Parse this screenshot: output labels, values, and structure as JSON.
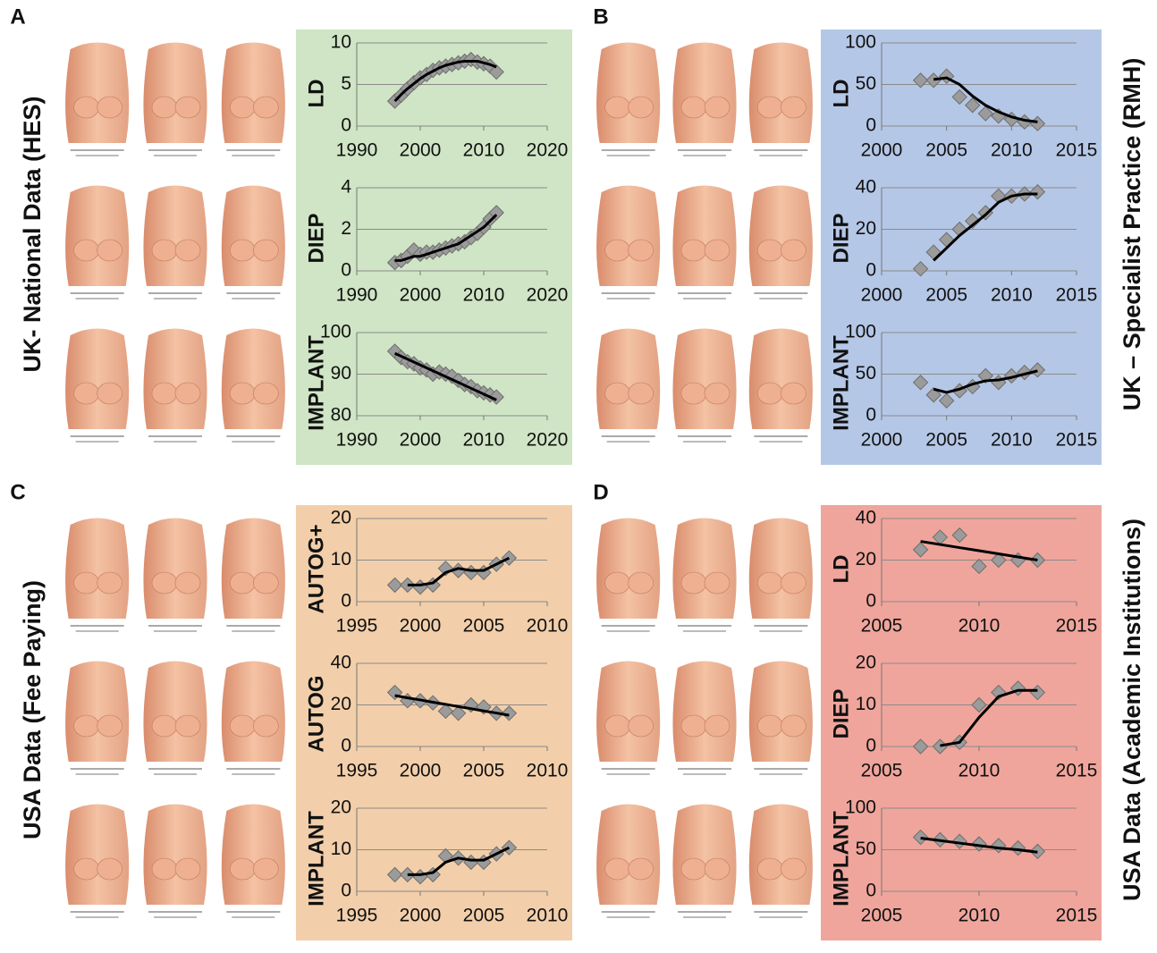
{
  "panels": [
    {
      "label": "A",
      "title": "UK- National Data (HES)",
      "color": "#cfe5c5",
      "chart_data": [
        {
          "type": "line",
          "ylabel": "LD",
          "x": [
            1996,
            1997,
            1998,
            1999,
            2000,
            2001,
            2002,
            2003,
            2004,
            2005,
            2006,
            2007,
            2008,
            2009,
            2010,
            2011,
            2012
          ],
          "values": [
            3,
            3.7,
            4.5,
            5.2,
            5.8,
            6.2,
            6.7,
            7,
            7.2,
            7.4,
            7.6,
            7.8,
            8,
            7.7,
            7.5,
            7.2,
            6.5
          ],
          "trend": [
            3,
            3.8,
            4.5,
            5.1,
            5.7,
            6.2,
            6.6,
            7,
            7.3,
            7.5,
            7.7,
            7.8,
            7.8,
            7.8,
            7.6,
            7.4,
            7.1
          ],
          "xlim": [
            1990,
            2020
          ],
          "xticks": [
            1990,
            2000,
            2010,
            2020
          ],
          "ylim": [
            0,
            10
          ],
          "yticks": [
            0,
            5,
            10
          ],
          "color": "#9b9b9b",
          "grid": true
        },
        {
          "type": "line",
          "ylabel": "DIEP",
          "x": [
            1996,
            1997,
            1998,
            1999,
            2000,
            2001,
            2002,
            2003,
            2004,
            2005,
            2006,
            2007,
            2008,
            2009,
            2010,
            2011,
            2012
          ],
          "values": [
            0.4,
            0.5,
            0.7,
            1,
            0.8,
            0.9,
            0.9,
            1,
            1.1,
            1.2,
            1.3,
            1.4,
            1.6,
            1.8,
            2.1,
            2.5,
            2.8
          ],
          "trend": [
            0.5,
            0.5,
            0.6,
            0.7,
            0.7,
            0.8,
            0.9,
            1,
            1.1,
            1.2,
            1.3,
            1.5,
            1.7,
            1.9,
            2.1,
            2.4,
            2.7
          ],
          "xlim": [
            1990,
            2020
          ],
          "xticks": [
            1990,
            2000,
            2010,
            2020
          ],
          "ylim": [
            0,
            4
          ],
          "yticks": [
            0,
            2,
            4
          ],
          "color": "#9b9b9b",
          "grid": true
        },
        {
          "type": "line",
          "ylabel": "IMPLANT",
          "x": [
            1996,
            1997,
            1998,
            1999,
            2000,
            2001,
            2002,
            2003,
            2004,
            2005,
            2006,
            2007,
            2008,
            2009,
            2010,
            2011,
            2012
          ],
          "values": [
            95.5,
            94,
            93,
            92.5,
            91.5,
            91,
            90,
            90.5,
            90,
            89.5,
            88.5,
            87.5,
            87,
            86,
            85.5,
            85,
            84.5
          ],
          "trend": [
            95,
            94.3,
            93.6,
            92.9,
            92.2,
            91.5,
            90.8,
            90.1,
            89.4,
            88.7,
            88,
            87.3,
            86.6,
            85.9,
            85.2,
            84.5,
            83.8
          ],
          "xlim": [
            1990,
            2020
          ],
          "xticks": [
            1990,
            2000,
            2010,
            2020
          ],
          "ylim": [
            80,
            100
          ],
          "yticks": [
            80,
            90,
            100
          ],
          "color": "#9b9b9b",
          "grid": true
        }
      ]
    },
    {
      "label": "B",
      "title": "UK – Specialist Practice (RMH)",
      "color": "#b5c7e6",
      "chart_data": [
        {
          "type": "line",
          "ylabel": "LD",
          "x": [
            2003,
            2004,
            2005,
            2006,
            2007,
            2008,
            2009,
            2010,
            2011,
            2012
          ],
          "values": [
            55,
            55,
            60,
            35,
            25,
            15,
            12,
            8,
            5,
            3
          ],
          "trend": [
            null,
            56,
            58,
            50,
            36,
            25,
            17,
            11,
            7,
            5
          ],
          "xlim": [
            2000,
            2015
          ],
          "xticks": [
            2000,
            2005,
            2010,
            2015
          ],
          "ylim": [
            0,
            100
          ],
          "yticks": [
            0,
            50,
            100
          ],
          "color": "#9b9b9b",
          "grid": true
        },
        {
          "type": "line",
          "ylabel": "DIEP",
          "x": [
            2003,
            2004,
            2005,
            2006,
            2007,
            2008,
            2009,
            2010,
            2011,
            2012
          ],
          "values": [
            1,
            9,
            15,
            20,
            24,
            28,
            36,
            36,
            37,
            38
          ],
          "trend": [
            null,
            5,
            11,
            17,
            22,
            27,
            33,
            36,
            37,
            37
          ],
          "xlim": [
            2000,
            2015
          ],
          "xticks": [
            2000,
            2005,
            2010,
            2015
          ],
          "ylim": [
            0,
            40
          ],
          "yticks": [
            0,
            20,
            40
          ],
          "color": "#9b9b9b",
          "grid": true
        },
        {
          "type": "line",
          "ylabel": "IMPLANT",
          "x": [
            2003,
            2004,
            2005,
            2006,
            2007,
            2008,
            2009,
            2010,
            2011,
            2012
          ],
          "values": [
            40,
            25,
            18,
            30,
            35,
            48,
            40,
            48,
            52,
            55
          ],
          "trend": [
            null,
            32,
            28,
            32,
            38,
            42,
            43,
            46,
            50,
            54
          ],
          "xlim": [
            2000,
            2015
          ],
          "xticks": [
            2000,
            2005,
            2010,
            2015
          ],
          "ylim": [
            0,
            100
          ],
          "yticks": [
            0,
            50,
            100
          ],
          "color": "#9b9b9b",
          "grid": true
        }
      ]
    },
    {
      "label": "C",
      "title": "USA Data (Fee Paying)",
      "color": "#f2cfaa",
      "chart_data": [
        {
          "type": "line",
          "ylabel": "AUTOG+",
          "x": [
            1998,
            1999,
            2000,
            2001,
            2002,
            2003,
            2004,
            2005,
            2006,
            2007
          ],
          "values": [
            4,
            4,
            3.5,
            4,
            8,
            7.5,
            7,
            7,
            9,
            10.5
          ],
          "trend": [
            null,
            4,
            4,
            4.5,
            7,
            8,
            7.5,
            7.5,
            9,
            10.5
          ],
          "xlim": [
            1995,
            2010
          ],
          "xticks": [
            1995,
            2000,
            2005,
            2010
          ],
          "ylim": [
            0,
            20
          ],
          "yticks": [
            0,
            10,
            20
          ],
          "color": "#9b9b9b",
          "grid": true
        },
        {
          "type": "line",
          "ylabel": "AUTOG",
          "x": [
            1998,
            1999,
            2000,
            2001,
            2002,
            2003,
            2004,
            2005,
            2006,
            2007
          ],
          "values": [
            26,
            22,
            22,
            21,
            17,
            16,
            20,
            19,
            16,
            16
          ],
          "trend": [
            24.5,
            23.4,
            22.4,
            21.3,
            20.3,
            19.2,
            18.2,
            17.1,
            16.1,
            15
          ],
          "xlim": [
            1995,
            2010
          ],
          "xticks": [
            1995,
            2000,
            2005,
            2010
          ],
          "ylim": [
            0,
            40
          ],
          "yticks": [
            0,
            20,
            40
          ],
          "color": "#9b9b9b",
          "grid": true
        },
        {
          "type": "line",
          "ylabel": "IMPLANT",
          "x": [
            1998,
            1999,
            2000,
            2001,
            2002,
            2003,
            2004,
            2005,
            2006,
            2007
          ],
          "values": [
            4,
            4,
            3.5,
            4,
            8.5,
            8,
            7,
            7,
            9,
            10.5
          ],
          "trend": [
            null,
            4,
            4,
            4.5,
            7,
            8,
            7.5,
            7.5,
            9,
            10.5
          ],
          "xlim": [
            1995,
            2010
          ],
          "xticks": [
            1995,
            2000,
            2005,
            2010
          ],
          "ylim": [
            0,
            20
          ],
          "yticks": [
            0,
            10,
            20
          ],
          "color": "#9b9b9b",
          "grid": true
        }
      ]
    },
    {
      "label": "D",
      "title": "USA Data (Academic Institutions)",
      "color": "#efa59c",
      "chart_data": [
        {
          "type": "line",
          "ylabel": "LD",
          "x": [
            2007,
            2008,
            2009,
            2010,
            2011,
            2012,
            2013
          ],
          "values": [
            25,
            31,
            32,
            17,
            20,
            20,
            20
          ],
          "trend": [
            29,
            27.5,
            26,
            24.5,
            23,
            21.5,
            20
          ],
          "xlim": [
            2005,
            2015
          ],
          "xticks": [
            2005,
            2010,
            2015
          ],
          "ylim": [
            0,
            40
          ],
          "yticks": [
            0,
            20,
            40
          ],
          "color": "#9b9b9b",
          "grid": true
        },
        {
          "type": "line",
          "ylabel": "DIEP",
          "x": [
            2007,
            2008,
            2009,
            2010,
            2011,
            2012,
            2013
          ],
          "values": [
            0,
            0,
            1,
            10,
            13,
            14,
            13
          ],
          "trend": [
            null,
            0.2,
            1,
            7,
            12,
            13.5,
            13.5
          ],
          "xlim": [
            2005,
            2015
          ],
          "xticks": [
            2005,
            2010,
            2015
          ],
          "ylim": [
            0,
            20
          ],
          "yticks": [
            0,
            10,
            20
          ],
          "color": "#9b9b9b",
          "grid": true
        },
        {
          "type": "line",
          "ylabel": "IMPLANT",
          "x": [
            2007,
            2008,
            2009,
            2010,
            2011,
            2012,
            2013
          ],
          "values": [
            65,
            62,
            60,
            57,
            55,
            52,
            48
          ],
          "trend": [
            64,
            61,
            58,
            55,
            52,
            50,
            47
          ],
          "xlim": [
            2005,
            2015
          ],
          "xticks": [
            2005,
            2010,
            2015
          ],
          "ylim": [
            0,
            100
          ],
          "yticks": [
            0,
            50,
            100
          ],
          "color": "#9b9b9b",
          "grid": true
        }
      ]
    }
  ]
}
